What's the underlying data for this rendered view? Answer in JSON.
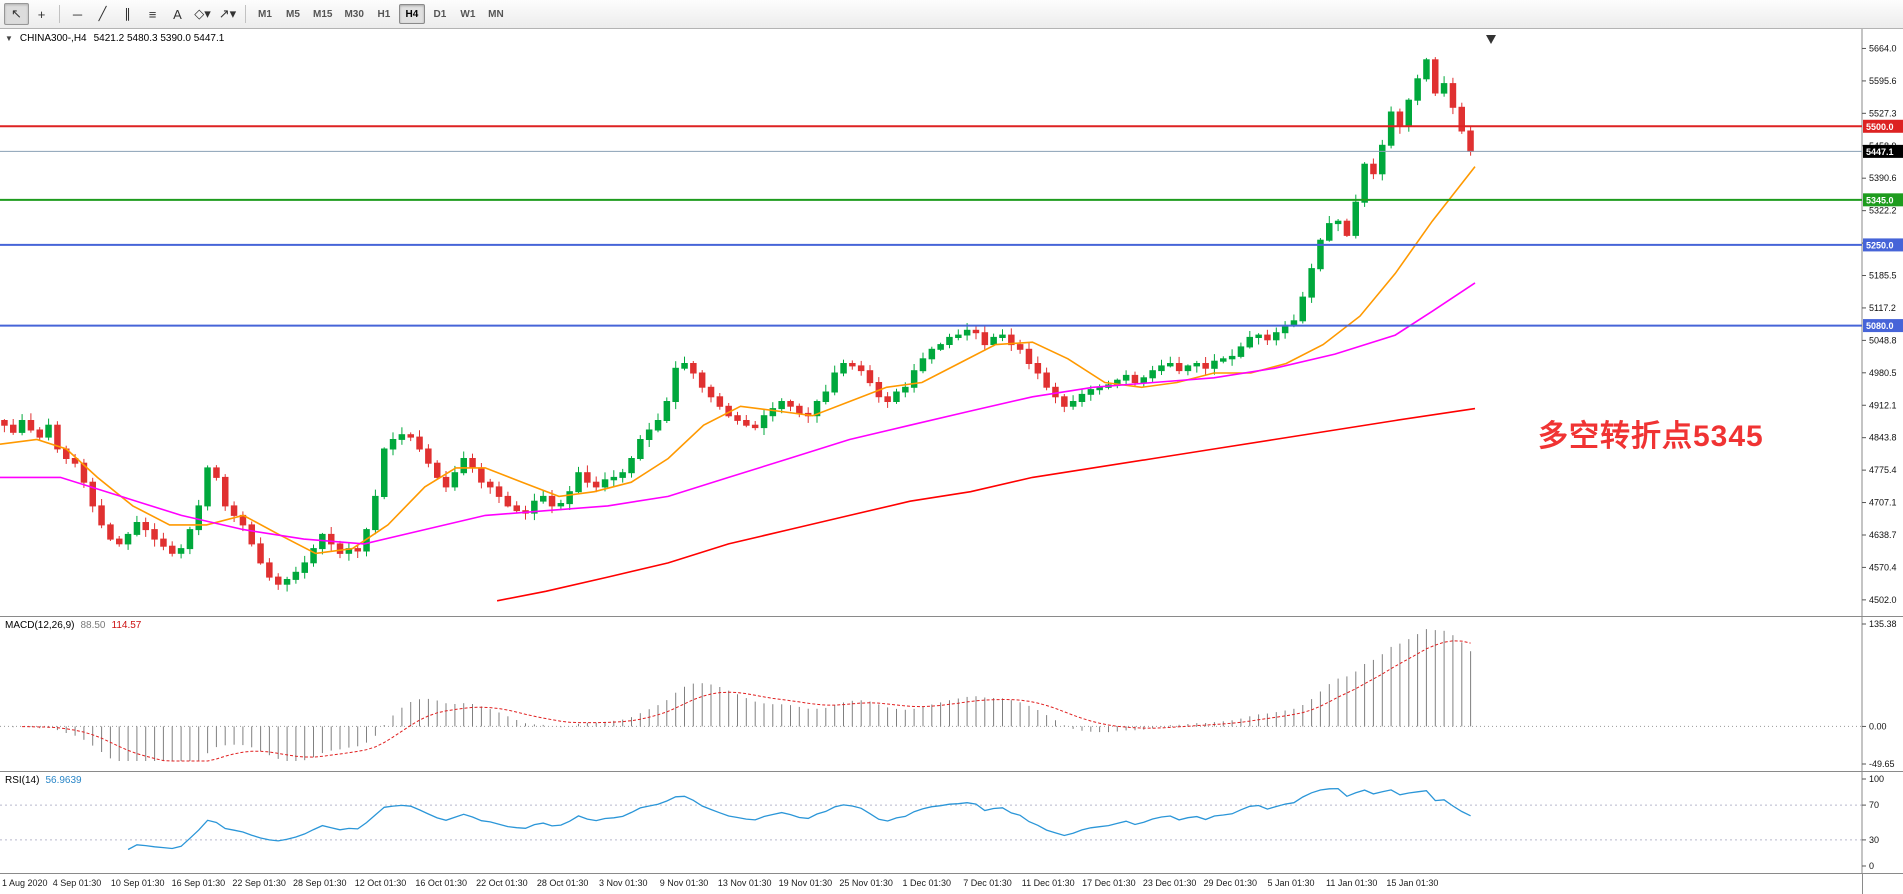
{
  "toolbar": {
    "tools": [
      {
        "name": "cursor",
        "glyph": "↖",
        "active": true
      },
      {
        "name": "crosshair",
        "glyph": "+",
        "active": false
      },
      {
        "name": "separator"
      },
      {
        "name": "horizontal-line",
        "glyph": "─",
        "active": false
      },
      {
        "name": "trendline",
        "glyph": "╱",
        "active": false
      },
      {
        "name": "equidistant-channel",
        "glyph": "∥",
        "active": false
      },
      {
        "name": "fibonacci",
        "glyph": "≡",
        "active": false
      },
      {
        "name": "text",
        "glyph": "A",
        "active": false
      },
      {
        "name": "shapes",
        "glyph": "◇",
        "dropdown": true,
        "active": false
      },
      {
        "name": "arrows",
        "glyph": "↗",
        "dropdown": true,
        "active": false
      },
      {
        "name": "separator"
      }
    ],
    "timeframes": [
      {
        "label": "M1",
        "active": false
      },
      {
        "label": "M5",
        "active": false
      },
      {
        "label": "M15",
        "active": false
      },
      {
        "label": "M30",
        "active": false
      },
      {
        "label": "H1",
        "active": false
      },
      {
        "label": "H4",
        "active": true
      },
      {
        "label": "D1",
        "active": false
      },
      {
        "label": "W1",
        "active": false
      },
      {
        "label": "MN",
        "active": false
      }
    ]
  },
  "chart": {
    "symbol_line": {
      "icon": "▼",
      "symbol": "CHINA300-,H4",
      "ohlc": "5421.2 5480.3 5390.0 5447.1"
    },
    "annotation": {
      "text": "多空转折点5345",
      "color": "#f03333"
    }
  },
  "chart_data": {
    "type": "candlestick+indicators",
    "symbol": "CHINA300-",
    "timeframe": "H4",
    "ohlc_current": {
      "open": 5421.2,
      "high": 5480.3,
      "low": 5390.0,
      "close": 5447.1
    },
    "price_range": [
      4468,
      5705
    ],
    "plot_span": 1475,
    "first_open": 4880,
    "colors": {
      "up": "#00a83c",
      "down": "#e03131",
      "macd_hist": "#808080",
      "macd_signal": "#e02020",
      "rsi": "#2b96d8"
    },
    "price_axis_ticks": [
      "5664.0",
      "5595.6",
      "5527.3",
      "5458.9",
      "5390.6",
      "5322.2",
      "5253.9",
      "5185.5",
      "5117.2",
      "5048.8",
      "4980.5",
      "4912.1",
      "4843.8",
      "4775.4",
      "4707.1",
      "4638.7",
      "4570.4",
      "4502.0"
    ],
    "closes": [
      4870,
      4855,
      4880,
      4860,
      4845,
      4870,
      4820,
      4800,
      4790,
      4750,
      4700,
      4660,
      4630,
      4620,
      4640,
      4665,
      4650,
      4630,
      4615,
      4600,
      4610,
      4650,
      4700,
      4780,
      4760,
      4700,
      4680,
      4660,
      4620,
      4580,
      4550,
      4535,
      4545,
      4560,
      4580,
      4610,
      4640,
      4620,
      4600,
      4610,
      4605,
      4650,
      4720,
      4820,
      4840,
      4850,
      4845,
      4820,
      4790,
      4760,
      4740,
      4770,
      4800,
      4780,
      4750,
      4740,
      4720,
      4700,
      4690,
      4685,
      4710,
      4720,
      4700,
      4705,
      4730,
      4770,
      4750,
      4740,
      4755,
      4760,
      4770,
      4800,
      4840,
      4860,
      4880,
      4920,
      4990,
      5000,
      4980,
      4950,
      4930,
      4910,
      4890,
      4880,
      4870,
      4865,
      4890,
      4905,
      4920,
      4910,
      4895,
      4890,
      4920,
      4940,
      4980,
      5000,
      4995,
      4985,
      4960,
      4930,
      4920,
      4940,
      4950,
      4985,
      5010,
      5030,
      5040,
      5055,
      5060,
      5070,
      5065,
      5040,
      5055,
      5060,
      5040,
      5030,
      5000,
      4980,
      4950,
      4930,
      4910,
      4920,
      4935,
      4945,
      4950,
      4955,
      4965,
      4975,
      4960,
      4970,
      4985,
      4995,
      5000,
      4985,
      4995,
      5000,
      4990,
      5005,
      5010,
      5015,
      5035,
      5055,
      5060,
      5050,
      5065,
      5080,
      5090,
      5140,
      5200,
      5260,
      5295,
      5300,
      5270,
      5340,
      5420,
      5400,
      5460,
      5530,
      5500,
      5555,
      5600,
      5640,
      5570,
      5590,
      5540,
      5490,
      5447.1
    ],
    "hlines": [
      {
        "price": 5500.0,
        "label": "5500.0",
        "color": "#dd2222",
        "label_bg": "#dd2222",
        "width": 2
      },
      {
        "price": 5345.0,
        "label": "5345.0",
        "color": "#1e9c1e",
        "label_bg": "#1e9c1e",
        "width": 2
      },
      {
        "price": 5250.0,
        "label": "5250.0",
        "color": "#4664d8",
        "label_bg": "#4664d8",
        "width": 2
      },
      {
        "price": 5080.0,
        "label": "5080.0",
        "color": "#4664d8",
        "label_bg": "#4664d8",
        "width": 2
      },
      {
        "price": 5447.1,
        "label": "5447.1",
        "color": "#8aa0b4",
        "label_bg": "#000000",
        "width": 1
      }
    ],
    "moving_averages": [
      {
        "name": "ma-fast",
        "color": "#ff9900",
        "points": [
          [
            0,
            4830
          ],
          [
            0.025,
            4840
          ],
          [
            0.045,
            4820
          ],
          [
            0.066,
            4760
          ],
          [
            0.09,
            4700
          ],
          [
            0.115,
            4660
          ],
          [
            0.14,
            4660
          ],
          [
            0.165,
            4680
          ],
          [
            0.189,
            4640
          ],
          [
            0.214,
            4600
          ],
          [
            0.239,
            4610
          ],
          [
            0.263,
            4660
          ],
          [
            0.288,
            4740
          ],
          [
            0.309,
            4780
          ],
          [
            0.329,
            4780
          ],
          [
            0.354,
            4750
          ],
          [
            0.379,
            4720
          ],
          [
            0.403,
            4730
          ],
          [
            0.428,
            4750
          ],
          [
            0.453,
            4800
          ],
          [
            0.477,
            4870
          ],
          [
            0.502,
            4910
          ],
          [
            0.527,
            4900
          ],
          [
            0.551,
            4890
          ],
          [
            0.576,
            4920
          ],
          [
            0.601,
            4950
          ],
          [
            0.625,
            4960
          ],
          [
            0.65,
            5000
          ],
          [
            0.675,
            5040
          ],
          [
            0.7,
            5045
          ],
          [
            0.724,
            5010
          ],
          [
            0.749,
            4960
          ],
          [
            0.774,
            4950
          ],
          [
            0.798,
            4960
          ],
          [
            0.823,
            4980
          ],
          [
            0.848,
            4980
          ],
          [
            0.872,
            5000
          ],
          [
            0.897,
            5040
          ],
          [
            0.922,
            5100
          ],
          [
            0.946,
            5190
          ],
          [
            0.971,
            5300
          ],
          [
            1.0,
            5415
          ]
        ]
      },
      {
        "name": "ma-mid",
        "color": "#ff00ff",
        "points": [
          [
            0,
            4760
          ],
          [
            0.041,
            4760
          ],
          [
            0.082,
            4720
          ],
          [
            0.123,
            4680
          ],
          [
            0.165,
            4650
          ],
          [
            0.206,
            4630
          ],
          [
            0.247,
            4620
          ],
          [
            0.288,
            4650
          ],
          [
            0.329,
            4680
          ],
          [
            0.37,
            4690
          ],
          [
            0.412,
            4700
          ],
          [
            0.453,
            4720
          ],
          [
            0.494,
            4760
          ],
          [
            0.535,
            4800
          ],
          [
            0.576,
            4840
          ],
          [
            0.617,
            4870
          ],
          [
            0.658,
            4900
          ],
          [
            0.7,
            4930
          ],
          [
            0.741,
            4950
          ],
          [
            0.782,
            4960
          ],
          [
            0.823,
            4970
          ],
          [
            0.864,
            4990
          ],
          [
            0.905,
            5020
          ],
          [
            0.946,
            5060
          ],
          [
            0.971,
            5110
          ],
          [
            1.0,
            5170
          ]
        ]
      },
      {
        "name": "ma-slow",
        "color": "#ff0000",
        "points": [
          [
            0.337,
            4500
          ],
          [
            0.37,
            4520
          ],
          [
            0.412,
            4550
          ],
          [
            0.453,
            4580
          ],
          [
            0.494,
            4620
          ],
          [
            0.535,
            4650
          ],
          [
            0.576,
            4680
          ],
          [
            0.617,
            4710
          ],
          [
            0.658,
            4730
          ],
          [
            0.7,
            4760
          ],
          [
            0.741,
            4780
          ],
          [
            0.782,
            4800
          ],
          [
            0.823,
            4820
          ],
          [
            0.864,
            4840
          ],
          [
            0.905,
            4860
          ],
          [
            0.946,
            4880
          ],
          [
            1.0,
            4905
          ]
        ]
      }
    ],
    "macd": {
      "title": "MACD(12,26,9)",
      "value_main": "88.50",
      "value_signal": "114.57",
      "axis_labels": [
        "135.38",
        "0.00",
        "-49.65"
      ],
      "max": 135.38,
      "min": -49.65,
      "params": [
        12,
        26,
        9
      ]
    },
    "rsi": {
      "title": "RSI(14)",
      "value": "56.9639",
      "axis_labels": [
        "100",
        "70",
        "30",
        "0"
      ],
      "levels": [
        70,
        30
      ],
      "period": 14
    },
    "time_labels": [
      "1 Aug 2020",
      "4 Sep 01:30",
      "10 Sep 01:30",
      "16 Sep 01:30",
      "22 Sep 01:30",
      "28 Sep 01:30",
      "12 Oct 01:30",
      "16 Oct 01:30",
      "22 Oct 01:30",
      "28 Oct 01:30",
      "3 Nov 01:30",
      "9 Nov 01:30",
      "13 Nov 01:30",
      "19 Nov 01:30",
      "25 Nov 01:30",
      "1 Dec 01:30",
      "7 Dec 01:30",
      "11 Dec 01:30",
      "17 Dec 01:30",
      "23 Dec 01:30",
      "29 Dec 01:30",
      "5 Jan 01:30",
      "11 Jan 01:30",
      "15 Jan 01:30"
    ]
  }
}
